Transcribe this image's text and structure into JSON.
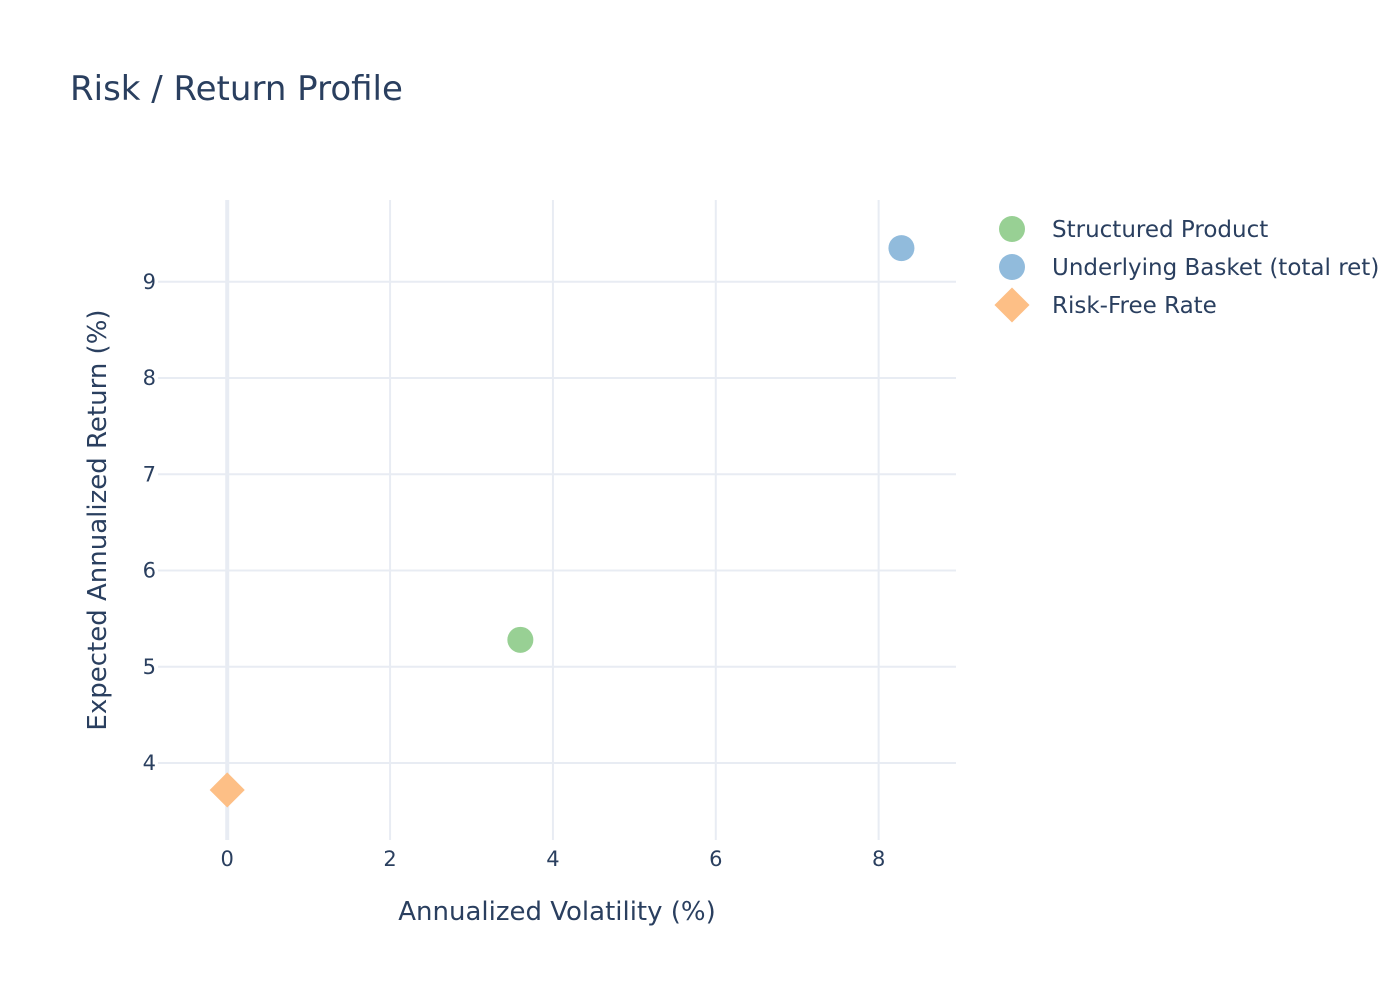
{
  "chart_data": {
    "type": "scatter",
    "title": "Risk / Return Profile",
    "xlabel": "Annualized Volatility (%)",
    "ylabel": "Expected Annualized Return (%)",
    "xlim": [
      -0.85,
      8.95
    ],
    "ylim": [
      3.2,
      9.85
    ],
    "x_ticks": [
      0,
      2,
      4,
      6,
      8
    ],
    "y_ticks": [
      4,
      5,
      6,
      7,
      8,
      9
    ],
    "grid": true,
    "legend_position": "top-right",
    "series": [
      {
        "name": "Structured Product",
        "marker": "circle",
        "color": "#98d094",
        "x": [
          3.6
        ],
        "y": [
          5.28
        ]
      },
      {
        "name": "Underlying Basket (total ret)",
        "marker": "circle",
        "color": "#91bbdc",
        "x": [
          8.28
        ],
        "y": [
          9.35
        ]
      },
      {
        "name": "Risk-Free Rate",
        "marker": "diamond",
        "color": "#fdbf86",
        "x": [
          0.0
        ],
        "y": [
          3.72
        ]
      }
    ]
  }
}
